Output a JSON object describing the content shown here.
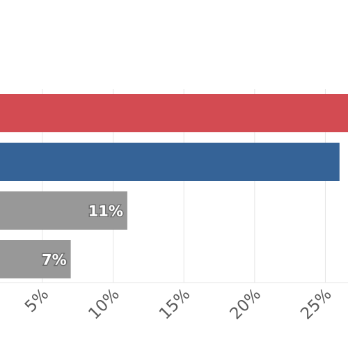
{
  "chart_data": {
    "type": "bar",
    "orientation": "horizontal",
    "categories": [
      "",
      "",
      "",
      ""
    ],
    "values": [
      28,
      26,
      11,
      7
    ],
    "value_labels": [
      "",
      "",
      "11%",
      "7%"
    ],
    "bar_colors": [
      "#d34b52",
      "#356397",
      "#989898",
      "#989898"
    ],
    "x_ticks": [
      5,
      10,
      15,
      20,
      25
    ],
    "x_tick_labels": [
      "5%",
      "10%",
      "15%",
      "20%",
      "25%"
    ],
    "xlim": [
      2,
      26.6
    ],
    "grid": true,
    "title": "",
    "xlabel": "",
    "ylabel": ""
  }
}
